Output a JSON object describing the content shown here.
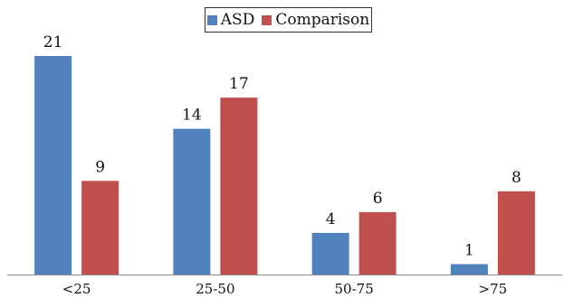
{
  "chart_data": {
    "type": "bar",
    "categories": [
      "<25",
      "25-50",
      "50-75",
      ">75"
    ],
    "series": [
      {
        "name": "ASD",
        "values": [
          21,
          14,
          4,
          1
        ],
        "color": "#4F81BD"
      },
      {
        "name": "Comparison",
        "values": [
          9,
          17,
          6,
          8
        ],
        "color": "#C0504D"
      }
    ],
    "data_labels": true,
    "legend": "top-center",
    "ylim": [
      0,
      22
    ],
    "grid": false
  }
}
